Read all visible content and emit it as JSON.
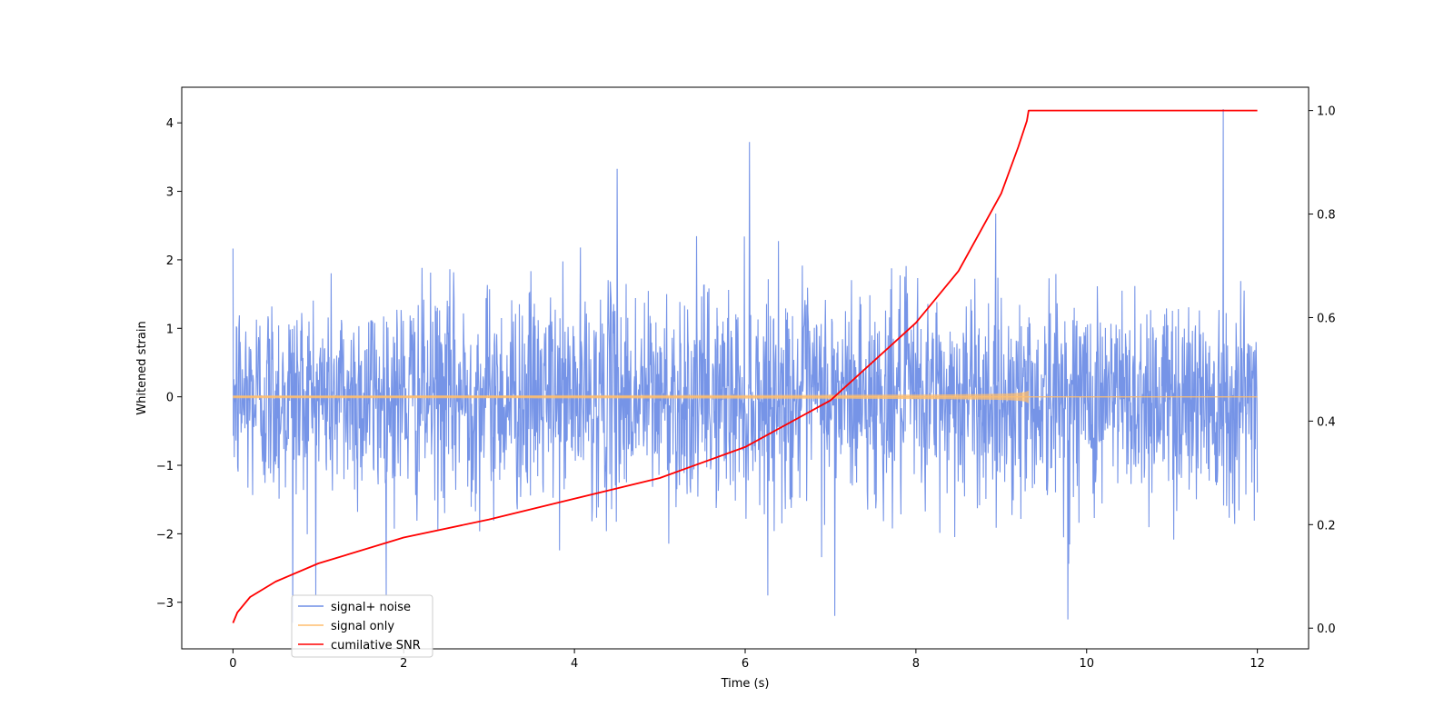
{
  "chart_data": {
    "type": "line",
    "title": "",
    "xlabel": "Time (s)",
    "ylabel": "Whitened strain",
    "y2label": "",
    "xlim": [
      -0.6,
      12.6
    ],
    "ylim": [
      -3.68,
      4.52
    ],
    "y2lim": [
      -0.04,
      1.045
    ],
    "x_ticks": [
      0,
      2,
      4,
      6,
      8,
      10,
      12
    ],
    "x_tick_labels": [
      "0",
      "2",
      "4",
      "6",
      "8",
      "10",
      "12"
    ],
    "y_ticks": [
      -3,
      -2,
      -1,
      0,
      1,
      2,
      3,
      4
    ],
    "y_tick_labels": [
      "−3",
      "−2",
      "−1",
      "0",
      "1",
      "2",
      "3",
      "4"
    ],
    "y2_ticks": [
      0.0,
      0.2,
      0.4,
      0.6,
      0.8,
      1.0
    ],
    "y2_tick_labels": [
      "0.0",
      "0.2",
      "0.4",
      "0.6",
      "0.8",
      "1.0"
    ],
    "grid": false,
    "legend_position": "lower-left",
    "series": [
      {
        "name": "signal+ noise",
        "color": "#6f8ee6",
        "axis": "left",
        "description_values": {
          "x_start": 0,
          "x_end": 12,
          "typical_range": [
            -1.6,
            1.6
          ],
          "peaks": [
            [
              6.05,
              3.72
            ],
            [
              11.6,
              4.2
            ],
            [
              4.5,
              3.33
            ],
            [
              7.05,
              -3.2
            ],
            [
              9.78,
              -3.25
            ],
            [
              0.7,
              -3.3
            ]
          ]
        }
      },
      {
        "name": "signal only",
        "color": "#ffbe6e",
        "axis": "left",
        "chirp": {
          "x_start": 0,
          "x_merger": 9.32,
          "x_end": 12,
          "amp_start": 0.02,
          "amp_merger": 0.3
        }
      },
      {
        "name": "cumilative SNR",
        "color": "#ff0000",
        "axis": "right",
        "x": [
          0,
          0.05,
          0.2,
          0.5,
          1,
          2,
          3,
          4,
          5,
          6,
          7,
          8,
          8.5,
          9,
          9.2,
          9.3,
          9.32,
          12
        ],
        "values": [
          0.01,
          0.03,
          0.06,
          0.09,
          0.125,
          0.175,
          0.21,
          0.25,
          0.29,
          0.35,
          0.44,
          0.59,
          0.69,
          0.84,
          0.93,
          0.98,
          1.0,
          1.0
        ]
      }
    ]
  }
}
